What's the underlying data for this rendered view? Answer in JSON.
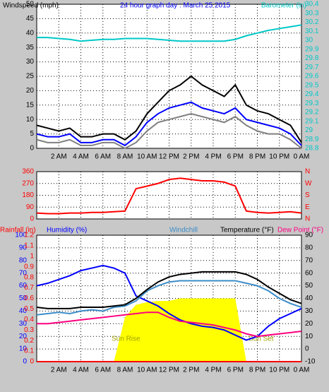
{
  "chart_data": [
    {
      "type": "line",
      "title": "24 hour graph day : March 25 2015",
      "title_color": "#0000ff",
      "ylabel": "Windspeed (mph)",
      "y2label": "Barometer (in)",
      "ycolor": "#000000",
      "y2color": "#00c8c8",
      "x": [
        0,
        1,
        2,
        3,
        4,
        5,
        6,
        7,
        8,
        9,
        10,
        11,
        12,
        13,
        14,
        15,
        16,
        17,
        18,
        19,
        20,
        21,
        22,
        23,
        24
      ],
      "xlim": [
        0,
        24
      ],
      "xticks": [
        {
          "value": 2,
          "label": "2 AM"
        },
        {
          "value": 4,
          "label": "4 AM"
        },
        {
          "value": 6,
          "label": "6 AM"
        },
        {
          "value": 8,
          "label": "8 AM"
        },
        {
          "value": 10,
          "label": "10 AM"
        },
        {
          "value": 12,
          "label": "12 PM"
        },
        {
          "value": 14,
          "label": "2 PM"
        },
        {
          "value": 16,
          "label": "4 PM"
        },
        {
          "value": 18,
          "label": "6 PM"
        },
        {
          "value": 20,
          "label": "8 PM"
        },
        {
          "value": 22,
          "label": "10 PM"
        },
        {
          "value": 24,
          "label": "0 AM"
        }
      ],
      "show_xtick_labels": true,
      "ylim": [
        0,
        50
      ],
      "yticks": [
        0,
        5,
        10,
        15,
        20,
        25,
        30,
        35,
        40,
        45,
        50
      ],
      "y2lim": [
        28.8,
        30.4
      ],
      "y2ticks": [
        28.8,
        28.9,
        29,
        29.1,
        29.2,
        29.3,
        29.4,
        29.5,
        29.6,
        29.7,
        29.8,
        29.9,
        30,
        30.1,
        30.2,
        30.3,
        30.4
      ],
      "grid_axis": "y",
      "series": [
        {
          "color": "#808080",
          "values": [
            3,
            2,
            2,
            3,
            1,
            1,
            2,
            2,
            0,
            2,
            6,
            9,
            10,
            11,
            12,
            11,
            10,
            9,
            11,
            8,
            6,
            5,
            5,
            3,
            0
          ]
        },
        {
          "color": "#000000",
          "values": [
            8,
            7,
            6,
            7,
            4,
            4,
            5,
            5,
            3,
            6,
            12,
            16,
            20,
            22,
            25,
            22,
            20,
            18,
            22,
            15,
            13,
            12,
            10,
            8,
            2
          ]
        },
        {
          "color": "#0000ff",
          "values": [
            5,
            4,
            4,
            5,
            2,
            2,
            3,
            3,
            1,
            4,
            9,
            12,
            14,
            15,
            16,
            14,
            13,
            12,
            14,
            10,
            9,
            8,
            7,
            5,
            1
          ]
        },
        {
          "color": "#00c8c8",
          "axis": "y2",
          "values": [
            30.03,
            30.03,
            30.02,
            30.01,
            29.99,
            30.0,
            30.01,
            30.01,
            30.02,
            30.02,
            30.02,
            30.01,
            30.0,
            29.99,
            29.99,
            29.99,
            29.99,
            29.99,
            30.01,
            30.05,
            30.08,
            30.11,
            30.13,
            30.15,
            30.17
          ]
        }
      ]
    },
    {
      "type": "line",
      "ycolor": "#ff0000",
      "y2color": "#ff0000",
      "x": [
        0,
        1,
        2,
        3,
        4,
        5,
        6,
        7,
        8,
        9,
        10,
        11,
        12,
        13,
        14,
        15,
        16,
        17,
        18,
        19,
        20,
        21,
        22,
        23,
        24
      ],
      "xlim": [
        0,
        24
      ],
      "xticks": [
        2,
        4,
        6,
        8,
        10,
        12,
        14,
        16,
        18,
        20,
        22,
        24
      ],
      "show_xtick_labels": false,
      "ylim": [
        0,
        360
      ],
      "yticks": [
        0,
        90,
        180,
        270,
        360
      ],
      "y2lim": [
        0,
        360
      ],
      "y2ticks": [
        {
          "value": 0,
          "label": "N"
        },
        {
          "value": 90,
          "label": "E"
        },
        {
          "value": 180,
          "label": "S"
        },
        {
          "value": 270,
          "label": "W"
        },
        {
          "value": 360,
          "label": "N"
        }
      ],
      "grid_axis": "y",
      "series": [
        {
          "color": "#ff0000",
          "values": [
            45,
            40,
            40,
            45,
            45,
            50,
            50,
            55,
            60,
            230,
            250,
            270,
            300,
            310,
            300,
            290,
            290,
            280,
            250,
            60,
            50,
            45,
            50,
            55,
            45
          ]
        }
      ]
    },
    {
      "type": "line",
      "ycolor": "#0000ff",
      "y2color": "#000000",
      "y3color": "#ff0000",
      "x": [
        0,
        1,
        2,
        3,
        4,
        5,
        6,
        7,
        8,
        9,
        10,
        11,
        12,
        13,
        14,
        15,
        16,
        17,
        18,
        19,
        20,
        21,
        22,
        23,
        24
      ],
      "xlim": [
        0,
        24
      ],
      "xticks": [
        {
          "value": 2,
          "label": "2 AM"
        },
        {
          "value": 4,
          "label": "4 AM"
        },
        {
          "value": 6,
          "label": "6 AM"
        },
        {
          "value": 8,
          "label": "8 AM"
        },
        {
          "value": 10,
          "label": "10 AM"
        },
        {
          "value": 12,
          "label": "12 PM"
        },
        {
          "value": 14,
          "label": "2 PM"
        },
        {
          "value": 16,
          "label": "4 PM"
        },
        {
          "value": 18,
          "label": "6 PM"
        },
        {
          "value": 20,
          "label": "8 PM"
        },
        {
          "value": 22,
          "label": "10 PM"
        },
        {
          "value": 24,
          "label": "0 AM"
        }
      ],
      "show_xtick_labels": true,
      "ylim": [
        0,
        100
      ],
      "yticks": [
        0,
        10,
        20,
        30,
        40,
        50,
        60,
        70,
        80,
        90,
        100
      ],
      "y2lim": [
        -10,
        90
      ],
      "y2ticks": [
        -10,
        0,
        10,
        20,
        30,
        40,
        50,
        60,
        70,
        80,
        90
      ],
      "y3lim": [
        0,
        1.2
      ],
      "y3ticks": [
        0,
        0.1,
        0.2,
        0.3,
        0.4,
        0.5,
        0.6,
        0.7,
        0.8,
        0.9,
        1,
        1.1,
        1.2
      ],
      "grid_axis": "y2",
      "annotations": [
        "Sun Rise",
        "Sun Set"
      ],
      "series": [
        {
          "color": "#ffff00",
          "fill": true,
          "values": [
            0,
            0,
            0,
            0,
            0,
            0,
            0,
            0,
            35,
            45,
            47,
            48,
            48,
            50,
            50,
            50,
            50,
            50,
            50,
            0,
            0,
            0,
            0,
            0,
            0
          ]
        },
        {
          "name": "Rainfall (in)",
          "color": "#ff0000",
          "axis": "y3",
          "values": [
            0,
            0,
            0,
            0,
            0,
            0,
            0,
            0,
            0,
            0,
            0,
            0,
            0,
            0,
            0,
            0,
            0,
            0,
            0,
            0,
            0,
            0,
            0,
            0,
            0
          ]
        },
        {
          "name": "Humidity (%)",
          "color": "#0000ff",
          "values": [
            60,
            62,
            65,
            68,
            72,
            74,
            76,
            74,
            70,
            52,
            48,
            44,
            38,
            33,
            30,
            28,
            27,
            25,
            21,
            17,
            20,
            28,
            34,
            38,
            42
          ]
        },
        {
          "name": "Windchill",
          "color": "#3c8cc8",
          "axis": "y2",
          "values": [
            27,
            28,
            29,
            28,
            30,
            31,
            30,
            33,
            34,
            38,
            46,
            50,
            53,
            54,
            54,
            54,
            54,
            54,
            54,
            52,
            50,
            46,
            40,
            36,
            33
          ]
        },
        {
          "name": "Temperature (°F)",
          "color": "#000000",
          "axis": "y2",
          "values": [
            33,
            32,
            32,
            32,
            33,
            33,
            33,
            34,
            35,
            40,
            47,
            53,
            57,
            59,
            60,
            61,
            61,
            61,
            61,
            59,
            55,
            49,
            44,
            39,
            36
          ]
        },
        {
          "name": "Dew Point (°F)",
          "color": "#ff0080",
          "axis": "y2",
          "values": [
            20,
            20,
            21,
            22,
            23,
            24,
            25,
            26,
            27,
            28,
            29,
            29,
            25,
            22,
            21,
            20,
            19,
            17,
            15,
            12,
            10,
            11,
            12,
            13,
            14
          ]
        }
      ]
    }
  ]
}
